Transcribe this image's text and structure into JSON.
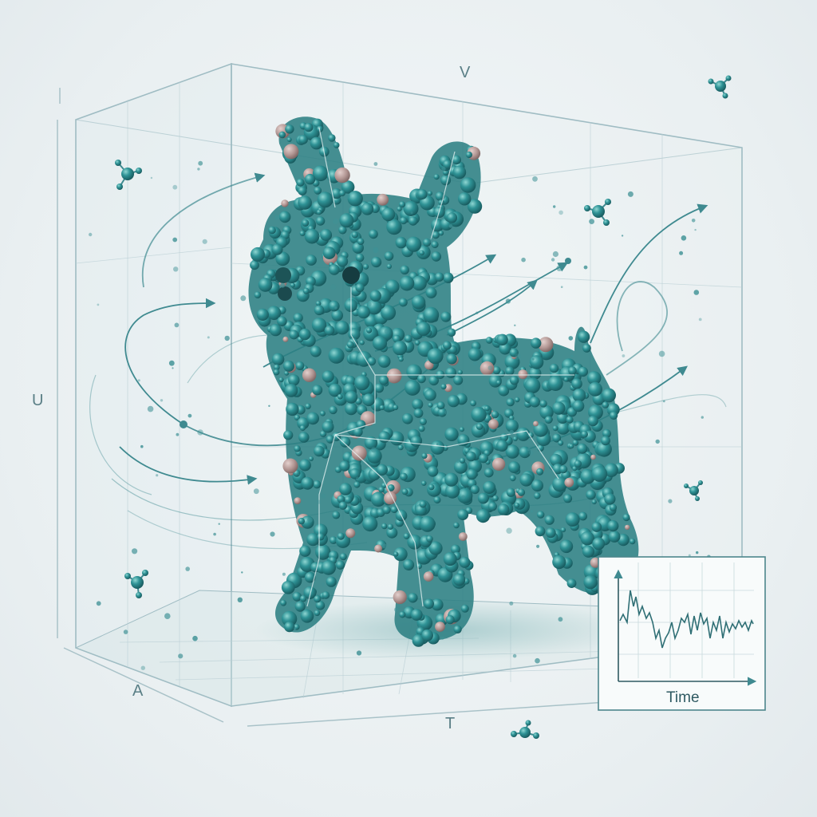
{
  "axis_labels": {
    "top": "V",
    "left": "U",
    "bottom_left": "A",
    "bottom_center": "T"
  },
  "inset": {
    "x_label": "Time"
  },
  "colors": {
    "particle": "#2f8f92",
    "particle_dark": "#1f6468",
    "particle_light": "#6cc3c2",
    "accent_particle": "#b69a98",
    "flow_line": "#3f8a90",
    "box_edge": "#9fbcc3"
  },
  "subject": "dog-made-of-particles"
}
